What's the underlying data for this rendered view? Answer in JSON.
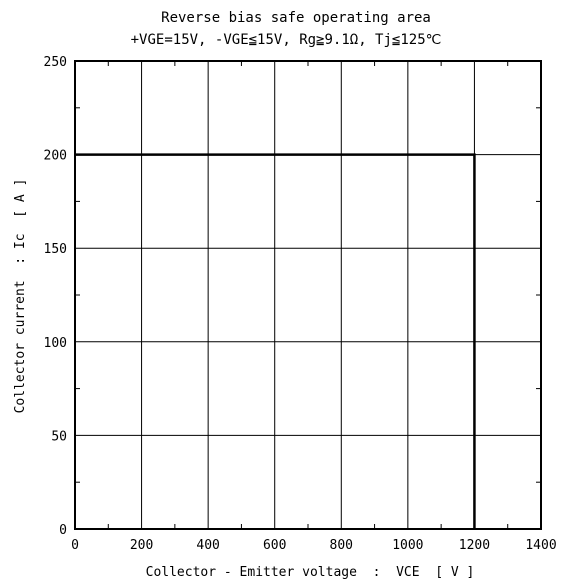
{
  "chart_data": {
    "type": "line",
    "title": "Reverse bias safe operating area",
    "subtitle": "+VGE=15V, -VGE≦15V, Rg≧9.1Ω, Tj≦125℃",
    "xlabel": "Collector - Emitter voltage  :  VCE  [ V ]",
    "ylabel": "Collector current  : Ic  [ A ]",
    "xlim": [
      0,
      1400
    ],
    "ylim": [
      0,
      250
    ],
    "xticks": [
      0,
      200,
      400,
      600,
      800,
      1000,
      1200,
      1400
    ],
    "yticks": [
      0,
      50,
      100,
      150,
      200,
      250
    ],
    "grid": true,
    "series": [
      {
        "x": [
          0,
          1200,
          1200
        ],
        "y": [
          200,
          200,
          0
        ]
      }
    ]
  },
  "colors": {
    "axis": "#000000",
    "grid": "#000000",
    "series": "#000000",
    "background": "#ffffff"
  }
}
